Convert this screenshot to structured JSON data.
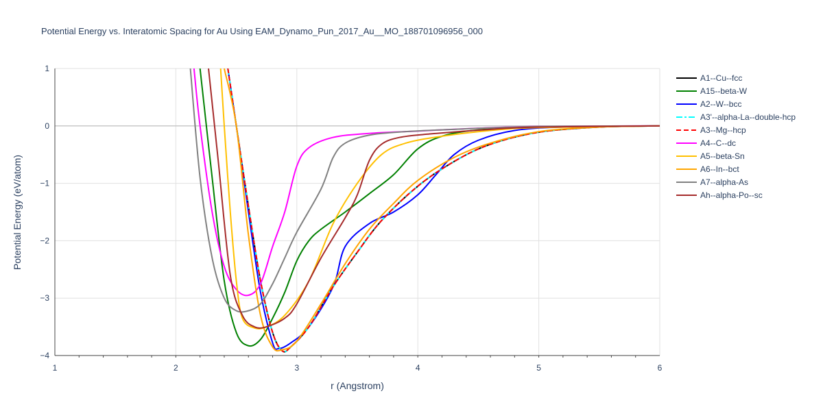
{
  "chart_data": {
    "type": "line",
    "title": "Potential Energy vs. Interatomic Spacing for Au Using EAM_Dynamo_Pun_2017_Au__MO_188701096956_000",
    "xlabel": "r (Angstrom)",
    "ylabel": "Potential Energy (eV/atom)",
    "xlim": [
      1,
      6
    ],
    "ylim": [
      -4,
      1
    ],
    "x_ticks": [
      "1",
      "2",
      "3",
      "4",
      "5",
      "6"
    ],
    "y_ticks": [
      "−4",
      "−3",
      "−2",
      "−1",
      "0",
      "1"
    ],
    "grid": true,
    "legend_position": "right",
    "series": [
      {
        "name": "A1--Cu--fcc",
        "color": "#000000",
        "dash": "solid",
        "points": [
          [
            2.43,
            1.0
          ],
          [
            2.5,
            0.0
          ],
          [
            2.6,
            -1.4
          ],
          [
            2.7,
            -2.7
          ],
          [
            2.8,
            -3.6
          ],
          [
            2.88,
            -3.92
          ],
          [
            2.95,
            -3.85
          ],
          [
            3.1,
            -3.5
          ],
          [
            3.3,
            -2.8
          ],
          [
            3.5,
            -2.2
          ],
          [
            3.7,
            -1.65
          ],
          [
            4.0,
            -1.05
          ],
          [
            4.3,
            -0.62
          ],
          [
            4.6,
            -0.32
          ],
          [
            5.0,
            -0.11
          ],
          [
            5.5,
            -0.02
          ],
          [
            6.0,
            0.0
          ]
        ]
      },
      {
        "name": "A15--beta-W",
        "color": "#008000",
        "dash": "solid",
        "points": [
          [
            2.2,
            1.0
          ],
          [
            2.3,
            -0.9
          ],
          [
            2.4,
            -2.7
          ],
          [
            2.5,
            -3.6
          ],
          [
            2.6,
            -3.83
          ],
          [
            2.7,
            -3.72
          ],
          [
            2.8,
            -3.35
          ],
          [
            2.9,
            -2.9
          ],
          [
            3.0,
            -2.35
          ],
          [
            3.1,
            -2.0
          ],
          [
            3.2,
            -1.8
          ],
          [
            3.4,
            -1.5
          ],
          [
            3.6,
            -1.18
          ],
          [
            3.8,
            -0.85
          ],
          [
            4.0,
            -0.4
          ],
          [
            4.2,
            -0.18
          ],
          [
            4.5,
            -0.07
          ],
          [
            5.0,
            -0.02
          ],
          [
            6.0,
            0.0
          ]
        ]
      },
      {
        "name": "A2--W--bcc",
        "color": "#0000ff",
        "dash": "solid",
        "points": [
          [
            2.43,
            1.0
          ],
          [
            2.5,
            0.0
          ],
          [
            2.6,
            -1.5
          ],
          [
            2.7,
            -2.9
          ],
          [
            2.8,
            -3.78
          ],
          [
            2.85,
            -3.88
          ],
          [
            2.95,
            -3.78
          ],
          [
            3.1,
            -3.5
          ],
          [
            3.3,
            -2.8
          ],
          [
            3.4,
            -2.1
          ],
          [
            3.6,
            -1.7
          ],
          [
            3.8,
            -1.5
          ],
          [
            4.0,
            -1.2
          ],
          [
            4.15,
            -0.85
          ],
          [
            4.3,
            -0.5
          ],
          [
            4.5,
            -0.25
          ],
          [
            4.8,
            -0.08
          ],
          [
            5.2,
            -0.02
          ],
          [
            6.0,
            0.0
          ]
        ]
      },
      {
        "name": "A3'--alpha-La--double-hcp",
        "color": "#00ffff",
        "dash": "dashdot",
        "points": [
          [
            2.43,
            1.0
          ],
          [
            2.5,
            0.0
          ],
          [
            2.6,
            -1.4
          ],
          [
            2.7,
            -2.7
          ],
          [
            2.8,
            -3.6
          ],
          [
            2.88,
            -3.92
          ],
          [
            2.95,
            -3.85
          ],
          [
            3.1,
            -3.5
          ],
          [
            3.3,
            -2.8
          ],
          [
            3.5,
            -2.2
          ],
          [
            3.7,
            -1.65
          ],
          [
            4.0,
            -1.05
          ],
          [
            4.3,
            -0.62
          ],
          [
            4.6,
            -0.32
          ],
          [
            5.0,
            -0.11
          ],
          [
            5.5,
            -0.02
          ],
          [
            6.0,
            0.0
          ]
        ]
      },
      {
        "name": "A3--Mg--hcp",
        "color": "#ff0000",
        "dash": "dash",
        "points": [
          [
            2.43,
            1.0
          ],
          [
            2.5,
            0.0
          ],
          [
            2.6,
            -1.4
          ],
          [
            2.7,
            -2.7
          ],
          [
            2.8,
            -3.6
          ],
          [
            2.88,
            -3.92
          ],
          [
            2.95,
            -3.85
          ],
          [
            3.1,
            -3.5
          ],
          [
            3.3,
            -2.8
          ],
          [
            3.5,
            -2.2
          ],
          [
            3.7,
            -1.65
          ],
          [
            4.0,
            -1.05
          ],
          [
            4.3,
            -0.62
          ],
          [
            4.6,
            -0.32
          ],
          [
            5.0,
            -0.11
          ],
          [
            5.5,
            -0.02
          ],
          [
            6.0,
            0.0
          ]
        ]
      },
      {
        "name": "A4--C--dc",
        "color": "#ff00ff",
        "dash": "solid",
        "points": [
          [
            2.15,
            1.0
          ],
          [
            2.2,
            0.0
          ],
          [
            2.3,
            -1.5
          ],
          [
            2.4,
            -2.45
          ],
          [
            2.5,
            -2.85
          ],
          [
            2.6,
            -2.95
          ],
          [
            2.7,
            -2.75
          ],
          [
            2.8,
            -2.1
          ],
          [
            2.9,
            -1.5
          ],
          [
            3.0,
            -0.7
          ],
          [
            3.1,
            -0.38
          ],
          [
            3.3,
            -0.2
          ],
          [
            3.6,
            -0.13
          ],
          [
            4.0,
            -0.09
          ],
          [
            4.5,
            -0.04
          ],
          [
            5.0,
            -0.01
          ],
          [
            6.0,
            0.0
          ]
        ]
      },
      {
        "name": "A5--beta-Sn",
        "color": "#ffc000",
        "dash": "solid",
        "points": [
          [
            2.37,
            1.0
          ],
          [
            2.4,
            0.0
          ],
          [
            2.45,
            -1.5
          ],
          [
            2.5,
            -2.7
          ],
          [
            2.55,
            -3.35
          ],
          [
            2.65,
            -3.52
          ],
          [
            2.75,
            -3.5
          ],
          [
            2.9,
            -3.3
          ],
          [
            3.1,
            -2.7
          ],
          [
            3.3,
            -1.7
          ],
          [
            3.5,
            -1.0
          ],
          [
            3.7,
            -0.5
          ],
          [
            3.9,
            -0.3
          ],
          [
            4.2,
            -0.18
          ],
          [
            4.6,
            -0.08
          ],
          [
            5.0,
            -0.03
          ],
          [
            6.0,
            0.0
          ]
        ]
      },
      {
        "name": "A6--In--bct",
        "color": "#ffa500",
        "dash": "solid",
        "points": [
          [
            2.4,
            1.0
          ],
          [
            2.5,
            0.0
          ],
          [
            2.6,
            -1.9
          ],
          [
            2.7,
            -3.3
          ],
          [
            2.8,
            -3.85
          ],
          [
            2.88,
            -3.9
          ],
          [
            3.0,
            -3.75
          ],
          [
            3.2,
            -3.1
          ],
          [
            3.4,
            -2.4
          ],
          [
            3.6,
            -1.8
          ],
          [
            3.8,
            -1.35
          ],
          [
            4.0,
            -0.95
          ],
          [
            4.3,
            -0.55
          ],
          [
            4.6,
            -0.3
          ],
          [
            5.0,
            -0.1
          ],
          [
            5.5,
            -0.02
          ],
          [
            6.0,
            0.0
          ]
        ]
      },
      {
        "name": "A7--alpha-As",
        "color": "#808080",
        "dash": "solid",
        "points": [
          [
            2.12,
            1.0
          ],
          [
            2.2,
            -0.9
          ],
          [
            2.3,
            -2.3
          ],
          [
            2.4,
            -3.0
          ],
          [
            2.5,
            -3.22
          ],
          [
            2.6,
            -3.22
          ],
          [
            2.7,
            -3.1
          ],
          [
            2.8,
            -2.75
          ],
          [
            2.9,
            -2.3
          ],
          [
            3.0,
            -1.85
          ],
          [
            3.2,
            -1.1
          ],
          [
            3.3,
            -0.55
          ],
          [
            3.4,
            -0.3
          ],
          [
            3.6,
            -0.16
          ],
          [
            3.9,
            -0.1
          ],
          [
            4.3,
            -0.06
          ],
          [
            5.0,
            -0.01
          ],
          [
            6.0,
            0.0
          ]
        ]
      },
      {
        "name": "Ah--alpha-Po--sc",
        "color": "#a52a2a",
        "dash": "solid",
        "points": [
          [
            2.27,
            1.0
          ],
          [
            2.35,
            -0.6
          ],
          [
            2.45,
            -2.6
          ],
          [
            2.55,
            -3.3
          ],
          [
            2.65,
            -3.5
          ],
          [
            2.75,
            -3.5
          ],
          [
            2.9,
            -3.35
          ],
          [
            3.0,
            -3.1
          ],
          [
            3.2,
            -2.3
          ],
          [
            3.4,
            -1.6
          ],
          [
            3.5,
            -1.2
          ],
          [
            3.6,
            -0.6
          ],
          [
            3.7,
            -0.32
          ],
          [
            3.85,
            -0.2
          ],
          [
            4.1,
            -0.14
          ],
          [
            4.6,
            -0.06
          ],
          [
            5.0,
            -0.02
          ],
          [
            6.0,
            0.0
          ]
        ]
      }
    ]
  }
}
